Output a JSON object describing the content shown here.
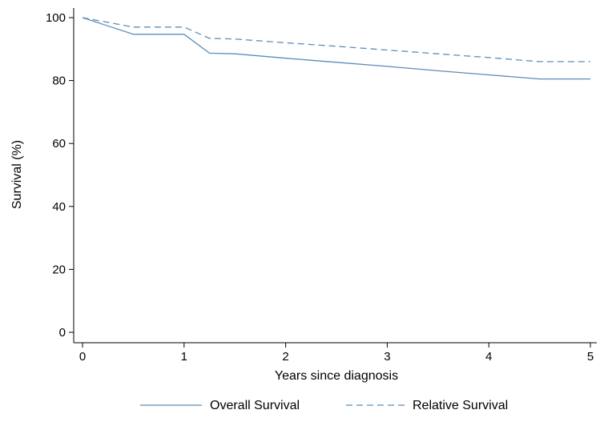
{
  "chart_data": {
    "type": "line",
    "title": "",
    "xlabel": "Years since diagnosis",
    "ylabel": "Survival (%)",
    "xlim": [
      0,
      5
    ],
    "ylim": [
      0,
      100
    ],
    "xticks": [
      0,
      1,
      2,
      3,
      4,
      5
    ],
    "yticks": [
      0,
      20,
      40,
      60,
      80,
      100
    ],
    "grid": false,
    "legend_position": "bottom",
    "series": [
      {
        "name": "Overall Survival",
        "style": "solid",
        "color": "#5b8db8",
        "x": [
          0,
          0.5,
          1,
          1.25,
          1.5,
          2,
          2.5,
          3,
          3.5,
          4,
          4.5,
          5
        ],
        "y": [
          100,
          94.7,
          94.7,
          88.7,
          88.5,
          87.1,
          85.8,
          84.5,
          83.1,
          81.8,
          80.5,
          80.5
        ]
      },
      {
        "name": "Relative Survival",
        "style": "dashed",
        "color": "#5b8db8",
        "x": [
          0,
          0.5,
          1,
          1.25,
          1.5,
          2,
          2.5,
          3,
          3.5,
          4,
          4.5,
          5
        ],
        "y": [
          100,
          97.0,
          97.0,
          93.4,
          93.2,
          92.0,
          90.9,
          89.7,
          88.5,
          87.3,
          86.0,
          86.0
        ]
      }
    ]
  }
}
